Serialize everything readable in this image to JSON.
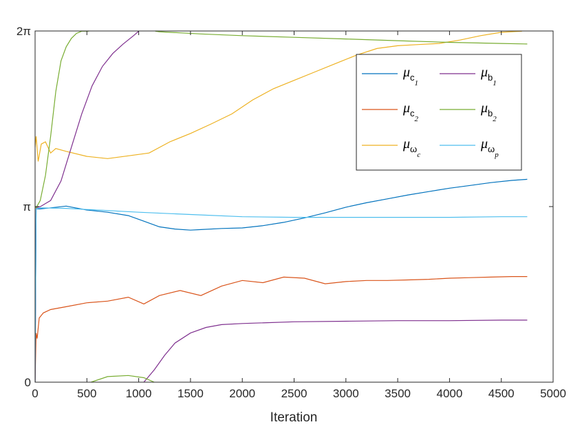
{
  "chart_data": {
    "type": "line",
    "xlabel": "Iteration",
    "ylabel": "",
    "xlim": [
      0,
      5000
    ],
    "ylim": [
      0,
      6.2832
    ],
    "xticks": [
      0,
      500,
      1000,
      1500,
      2000,
      2500,
      3000,
      3500,
      4000,
      4500,
      5000
    ],
    "xtick_labels": [
      "0",
      "500",
      "1000",
      "1500",
      "2000",
      "2500",
      "3000",
      "3500",
      "4000",
      "4500",
      "5000"
    ],
    "yticks": [
      0,
      3.1416,
      6.2832
    ],
    "ytick_labels": [
      "0",
      "π",
      "2π"
    ],
    "grid": false,
    "legend_position": "top-right",
    "series": [
      {
        "name": "μ c1",
        "legend": {
          "base": "μ",
          "sub": "c",
          "subsub": "1"
        },
        "color": "#0072BD",
        "x": [
          0,
          10,
          50,
          150,
          300,
          500,
          700,
          900,
          1050,
          1200,
          1350,
          1500,
          1600,
          1800,
          2000,
          2200,
          2400,
          2600,
          2800,
          3000,
          3200,
          3400,
          3600,
          3800,
          4000,
          4200,
          4400,
          4600,
          4750
        ],
        "y": [
          0.0,
          3.1,
          3.1,
          3.12,
          3.15,
          3.08,
          3.04,
          2.98,
          2.88,
          2.78,
          2.74,
          2.72,
          2.73,
          2.75,
          2.76,
          2.8,
          2.86,
          2.94,
          3.03,
          3.13,
          3.21,
          3.28,
          3.35,
          3.41,
          3.47,
          3.52,
          3.57,
          3.61,
          3.63
        ]
      },
      {
        "name": "μ c2",
        "legend": {
          "base": "μ",
          "sub": "c",
          "subsub": "2"
        },
        "color": "#D95319",
        "x": [
          0,
          10,
          20,
          40,
          80,
          150,
          300,
          500,
          700,
          900,
          1050,
          1200,
          1400,
          1600,
          1800,
          2000,
          2200,
          2400,
          2600,
          2800,
          3000,
          3200,
          3400,
          3600,
          3800,
          4000,
          4200,
          4400,
          4600,
          4750
        ],
        "y": [
          0.0,
          0.88,
          0.78,
          1.15,
          1.24,
          1.3,
          1.35,
          1.42,
          1.45,
          1.52,
          1.4,
          1.55,
          1.64,
          1.55,
          1.72,
          1.82,
          1.78,
          1.88,
          1.86,
          1.76,
          1.8,
          1.82,
          1.82,
          1.83,
          1.84,
          1.86,
          1.87,
          1.88,
          1.89,
          1.89
        ]
      },
      {
        "name": "μ ωc",
        "legend": {
          "base": "μ",
          "sub": "ω",
          "subsub": "c"
        },
        "color": "#EDB120",
        "x": [
          0,
          10,
          30,
          60,
          100,
          150,
          200,
          300,
          500,
          700,
          900,
          1100,
          1300,
          1500,
          1700,
          1900,
          2100,
          2300,
          2500,
          2700,
          2900,
          3100,
          3300,
          3500,
          3700,
          3900,
          4100,
          4300,
          4500,
          4700
        ],
        "y": [
          4.2,
          4.4,
          3.95,
          4.26,
          4.3,
          4.1,
          4.18,
          4.13,
          4.04,
          4.0,
          4.05,
          4.1,
          4.3,
          4.45,
          4.62,
          4.8,
          5.05,
          5.25,
          5.4,
          5.55,
          5.7,
          5.85,
          5.97,
          6.02,
          6.04,
          6.06,
          6.12,
          6.2,
          6.26,
          6.28
        ]
      },
      {
        "name": "μ b1",
        "legend": {
          "base": "μ",
          "sub": "b",
          "subsub": "1"
        },
        "color": "#7E2F8E",
        "x": [
          0,
          10,
          50,
          150,
          250,
          350,
          450,
          550,
          650,
          750,
          850,
          950,
          1000,
          1050,
          1150,
          1250,
          1350,
          1500,
          1650,
          1800,
          2000,
          2500,
          3000,
          3500,
          4000,
          4500,
          4750
        ],
        "y": [
          0.0,
          3.12,
          3.14,
          3.25,
          3.6,
          4.2,
          4.8,
          5.3,
          5.65,
          5.88,
          6.05,
          6.2,
          6.28,
          0.0,
          0.22,
          0.48,
          0.7,
          0.88,
          0.98,
          1.03,
          1.05,
          1.08,
          1.09,
          1.1,
          1.1,
          1.11,
          1.11
        ]
      },
      {
        "name": "μ b2",
        "legend": {
          "base": "μ",
          "sub": "b",
          "subsub": "2"
        },
        "color": "#77AC30",
        "x": [
          0,
          10,
          50,
          100,
          150,
          200,
          250,
          300,
          350,
          400,
          450,
          500,
          520,
          540,
          700,
          900,
          1050,
          1150,
          1160,
          1200,
          1400,
          1600,
          2000,
          2500,
          3000,
          3500,
          4000,
          4500,
          4750
        ],
        "y": [
          3.15,
          3.12,
          3.25,
          3.7,
          4.4,
          5.2,
          5.75,
          6.0,
          6.15,
          6.24,
          6.28,
          6.28,
          6.28,
          0.0,
          0.1,
          0.12,
          0.08,
          0.0,
          6.28,
          6.27,
          6.25,
          6.23,
          6.2,
          6.17,
          6.14,
          6.11,
          6.08,
          6.06,
          6.05
        ]
      },
      {
        "name": "μ ωp",
        "legend": {
          "base": "μ",
          "sub": "ω",
          "subsub": "p"
        },
        "color": "#4DBEEE",
        "x": [
          0,
          10,
          50,
          300,
          600,
          1000,
          1500,
          2000,
          2500,
          3000,
          3500,
          4000,
          4500,
          4750
        ],
        "y": [
          0.0,
          3.1,
          3.12,
          3.11,
          3.08,
          3.04,
          3.0,
          2.96,
          2.95,
          2.95,
          2.95,
          2.95,
          2.96,
          2.96
        ]
      }
    ]
  }
}
